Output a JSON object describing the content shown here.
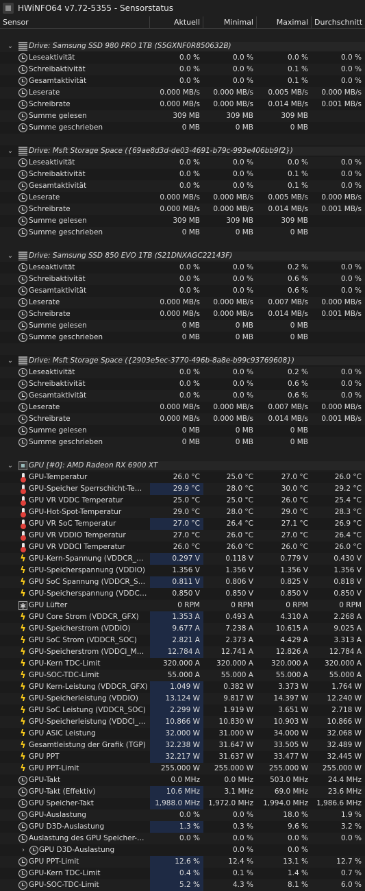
{
  "window": {
    "title": "HWiNFO64 v7.72-5355 - Sensorstatus"
  },
  "header": {
    "sensor": "Sensor",
    "current": "Aktuell",
    "min": "Minimal",
    "max": "Maximal",
    "avg": "Durchschnitt"
  },
  "rows": [
    {
      "kind": "blank"
    },
    {
      "kind": "group",
      "icon": "drive-icon",
      "label": "Drive: Samsung SSD 980 PRO 1TB (S5GXNF0R850632B)"
    },
    {
      "kind": "item",
      "icon": "clock-icon",
      "label": "Leseaktivität",
      "cur": "0.0 %",
      "min": "0.0 %",
      "max": "0.0 %",
      "avg": "0.0 %"
    },
    {
      "kind": "item",
      "icon": "clock-icon",
      "label": "Schreibaktivität",
      "cur": "0.0 %",
      "min": "0.0 %",
      "max": "0.1 %",
      "avg": "0.0 %"
    },
    {
      "kind": "item",
      "icon": "clock-icon",
      "label": "Gesamtaktivität",
      "cur": "0.0 %",
      "min": "0.0 %",
      "max": "0.1 %",
      "avg": "0.0 %"
    },
    {
      "kind": "item",
      "icon": "clock-icon",
      "label": "Leserate",
      "cur": "0.000 MB/s",
      "min": "0.000 MB/s",
      "max": "0.005 MB/s",
      "avg": "0.000 MB/s"
    },
    {
      "kind": "item",
      "icon": "clock-icon",
      "label": "Schreibrate",
      "cur": "0.000 MB/s",
      "min": "0.000 MB/s",
      "max": "0.014 MB/s",
      "avg": "0.001 MB/s"
    },
    {
      "kind": "item",
      "icon": "clock-icon",
      "label": "Summe gelesen",
      "cur": "309 MB",
      "min": "309 MB",
      "max": "309 MB",
      "avg": ""
    },
    {
      "kind": "item",
      "icon": "clock-icon",
      "label": "Summe geschrieben",
      "cur": "0 MB",
      "min": "0 MB",
      "max": "0 MB",
      "avg": ""
    },
    {
      "kind": "blank"
    },
    {
      "kind": "group",
      "icon": "drive-icon",
      "label": "Drive: Msft Storage Space ({69ae8d3d-de03-4691-b79c-993e406bb9f2})"
    },
    {
      "kind": "item",
      "icon": "clock-icon",
      "label": "Leseaktivität",
      "cur": "0.0 %",
      "min": "0.0 %",
      "max": "0.0 %",
      "avg": "0.0 %"
    },
    {
      "kind": "item",
      "icon": "clock-icon",
      "label": "Schreibaktivität",
      "cur": "0.0 %",
      "min": "0.0 %",
      "max": "0.1 %",
      "avg": "0.0 %"
    },
    {
      "kind": "item",
      "icon": "clock-icon",
      "label": "Gesamtaktivität",
      "cur": "0.0 %",
      "min": "0.0 %",
      "max": "0.1 %",
      "avg": "0.0 %"
    },
    {
      "kind": "item",
      "icon": "clock-icon",
      "label": "Leserate",
      "cur": "0.000 MB/s",
      "min": "0.000 MB/s",
      "max": "0.005 MB/s",
      "avg": "0.000 MB/s"
    },
    {
      "kind": "item",
      "icon": "clock-icon",
      "label": "Schreibrate",
      "cur": "0.000 MB/s",
      "min": "0.000 MB/s",
      "max": "0.014 MB/s",
      "avg": "0.001 MB/s"
    },
    {
      "kind": "item",
      "icon": "clock-icon",
      "label": "Summe gelesen",
      "cur": "309 MB",
      "min": "309 MB",
      "max": "309 MB",
      "avg": ""
    },
    {
      "kind": "item",
      "icon": "clock-icon",
      "label": "Summe geschrieben",
      "cur": "0 MB",
      "min": "0 MB",
      "max": "0 MB",
      "avg": ""
    },
    {
      "kind": "blank"
    },
    {
      "kind": "group",
      "icon": "drive-icon",
      "label": "Drive: Samsung SSD 850 EVO 1TB (S21DNXAGC22143F)"
    },
    {
      "kind": "item",
      "icon": "clock-icon",
      "label": "Leseaktivität",
      "cur": "0.0 %",
      "min": "0.0 %",
      "max": "0.2 %",
      "avg": "0.0 %"
    },
    {
      "kind": "item",
      "icon": "clock-icon",
      "label": "Schreibaktivität",
      "cur": "0.0 %",
      "min": "0.0 %",
      "max": "0.6 %",
      "avg": "0.0 %"
    },
    {
      "kind": "item",
      "icon": "clock-icon",
      "label": "Gesamtaktivität",
      "cur": "0.0 %",
      "min": "0.0 %",
      "max": "0.6 %",
      "avg": "0.0 %"
    },
    {
      "kind": "item",
      "icon": "clock-icon",
      "label": "Leserate",
      "cur": "0.000 MB/s",
      "min": "0.000 MB/s",
      "max": "0.007 MB/s",
      "avg": "0.000 MB/s"
    },
    {
      "kind": "item",
      "icon": "clock-icon",
      "label": "Schreibrate",
      "cur": "0.000 MB/s",
      "min": "0.000 MB/s",
      "max": "0.014 MB/s",
      "avg": "0.001 MB/s"
    },
    {
      "kind": "item",
      "icon": "clock-icon",
      "label": "Summe gelesen",
      "cur": "0 MB",
      "min": "0 MB",
      "max": "0 MB",
      "avg": ""
    },
    {
      "kind": "item",
      "icon": "clock-icon",
      "label": "Summe geschrieben",
      "cur": "0 MB",
      "min": "0 MB",
      "max": "0 MB",
      "avg": ""
    },
    {
      "kind": "blank"
    },
    {
      "kind": "group",
      "icon": "drive-icon",
      "label": "Drive: Msft Storage Space ({2903e5ec-3770-496b-8a8e-b99c93769608})"
    },
    {
      "kind": "item",
      "icon": "clock-icon",
      "label": "Leseaktivität",
      "cur": "0.0 %",
      "min": "0.0 %",
      "max": "0.2 %",
      "avg": "0.0 %"
    },
    {
      "kind": "item",
      "icon": "clock-icon",
      "label": "Schreibaktivität",
      "cur": "0.0 %",
      "min": "0.0 %",
      "max": "0.6 %",
      "avg": "0.0 %"
    },
    {
      "kind": "item",
      "icon": "clock-icon",
      "label": "Gesamtaktivität",
      "cur": "0.0 %",
      "min": "0.0 %",
      "max": "0.6 %",
      "avg": "0.0 %"
    },
    {
      "kind": "item",
      "icon": "clock-icon",
      "label": "Leserate",
      "cur": "0.000 MB/s",
      "min": "0.000 MB/s",
      "max": "0.007 MB/s",
      "avg": "0.000 MB/s"
    },
    {
      "kind": "item",
      "icon": "clock-icon",
      "label": "Schreibrate",
      "cur": "0.000 MB/s",
      "min": "0.000 MB/s",
      "max": "0.014 MB/s",
      "avg": "0.001 MB/s"
    },
    {
      "kind": "item",
      "icon": "clock-icon",
      "label": "Summe gelesen",
      "cur": "0 MB",
      "min": "0 MB",
      "max": "0 MB",
      "avg": ""
    },
    {
      "kind": "item",
      "icon": "clock-icon",
      "label": "Summe geschrieben",
      "cur": "0 MB",
      "min": "0 MB",
      "max": "0 MB",
      "avg": ""
    },
    {
      "kind": "blank"
    },
    {
      "kind": "group",
      "icon": "chip-icon",
      "label": "GPU [#0]: AMD Radeon RX 6900 XT"
    },
    {
      "kind": "item",
      "icon": "thermometer-icon",
      "label": "GPU-Temperatur",
      "cur": "26.0 °C",
      "min": "25.0 °C",
      "max": "27.0 °C",
      "avg": "26.0 °C"
    },
    {
      "kind": "item",
      "icon": "thermometer-icon",
      "label": "GPU-Speicher Sperrschicht-Temperatur",
      "cur": "29.9 °C",
      "min": "28.0 °C",
      "max": "30.0 °C",
      "avg": "29.2 °C",
      "hl": true
    },
    {
      "kind": "item",
      "icon": "thermometer-icon",
      "label": "GPU VR VDDC Temperatur",
      "cur": "25.0 °C",
      "min": "25.0 °C",
      "max": "26.0 °C",
      "avg": "25.4 °C"
    },
    {
      "kind": "item",
      "icon": "thermometer-icon",
      "label": "GPU-Hot-Spot-Temperatur",
      "cur": "29.0 °C",
      "min": "28.0 °C",
      "max": "29.0 °C",
      "avg": "28.3 °C"
    },
    {
      "kind": "item",
      "icon": "thermometer-icon",
      "label": "GPU VR SoC Temperatur",
      "cur": "27.0 °C",
      "min": "26.4 °C",
      "max": "27.1 °C",
      "avg": "26.9 °C",
      "hl": true
    },
    {
      "kind": "item",
      "icon": "thermometer-icon",
      "label": "GPU VR VDDIO Temperatur",
      "cur": "27.0 °C",
      "min": "26.0 °C",
      "max": "27.0 °C",
      "avg": "26.4 °C"
    },
    {
      "kind": "item",
      "icon": "thermometer-icon",
      "label": "GPU VR VDDCI Temperatur",
      "cur": "26.0 °C",
      "min": "26.0 °C",
      "max": "26.0 °C",
      "avg": "26.0 °C"
    },
    {
      "kind": "item",
      "icon": "bolt-icon",
      "label": "GPU-Kern-Spannung (VDDCR_GFX)",
      "cur": "0.297 V",
      "min": "0.118 V",
      "max": "0.779 V",
      "avg": "0.430 V",
      "hl": true
    },
    {
      "kind": "item",
      "icon": "bolt-icon",
      "label": "GPU-Speicherspannung (VDDIO)",
      "cur": "1.356 V",
      "min": "1.356 V",
      "max": "1.356 V",
      "avg": "1.356 V"
    },
    {
      "kind": "item",
      "icon": "bolt-icon",
      "label": "GPU SoC Spannung (VDDCR_SOC)",
      "cur": "0.811 V",
      "min": "0.806 V",
      "max": "0.825 V",
      "avg": "0.818 V",
      "hl": true
    },
    {
      "kind": "item",
      "icon": "bolt-icon",
      "label": "GPU-Speicherspannung (VDDCI_MEM)",
      "cur": "0.850 V",
      "min": "0.850 V",
      "max": "0.850 V",
      "avg": "0.850 V"
    },
    {
      "kind": "item",
      "icon": "fan-icon",
      "label": "GPU Lüfter",
      "cur": "0 RPM",
      "min": "0 RPM",
      "max": "0 RPM",
      "avg": "0 RPM"
    },
    {
      "kind": "item",
      "icon": "bolt-icon",
      "label": "GPU Core Strom (VDDCR_GFX)",
      "cur": "1.353 A",
      "min": "0.493 A",
      "max": "4.310 A",
      "avg": "2.268 A",
      "hl": true
    },
    {
      "kind": "item",
      "icon": "bolt-icon",
      "label": "GPU-Speicherstrom (VDDIO)",
      "cur": "9.677 A",
      "min": "7.238 A",
      "max": "10.615 A",
      "avg": "9.025 A",
      "hl": true
    },
    {
      "kind": "item",
      "icon": "bolt-icon",
      "label": "GPU SoC Strom (VDDCR_SOC)",
      "cur": "2.821 A",
      "min": "2.373 A",
      "max": "4.429 A",
      "avg": "3.313 A",
      "hl": true
    },
    {
      "kind": "item",
      "icon": "bolt-icon",
      "label": "GPU-Speicherstrom (VDDCI_MEM)",
      "cur": "12.784 A",
      "min": "12.741 A",
      "max": "12.826 A",
      "avg": "12.784 A",
      "hl": true
    },
    {
      "kind": "item",
      "icon": "bolt-icon",
      "label": "GPU-Kern TDC-Limit",
      "cur": "320.000 A",
      "min": "320.000 A",
      "max": "320.000 A",
      "avg": "320.000 A"
    },
    {
      "kind": "item",
      "icon": "bolt-icon",
      "label": "GPU-SOC-TDC-Limit",
      "cur": "55.000 A",
      "min": "55.000 A",
      "max": "55.000 A",
      "avg": "55.000 A"
    },
    {
      "kind": "item",
      "icon": "bolt-icon",
      "label": "GPU Kern-Leistung (VDDCR_GFX)",
      "cur": "1.049 W",
      "min": "0.382 W",
      "max": "3.373 W",
      "avg": "1.764 W",
      "hl": true
    },
    {
      "kind": "item",
      "icon": "bolt-icon",
      "label": "GPU-Speicherleistung (VDDIO)",
      "cur": "13.124 W",
      "min": "9.817 W",
      "max": "14.397 W",
      "avg": "12.240 W",
      "hl": true
    },
    {
      "kind": "item",
      "icon": "bolt-icon",
      "label": "GPU SoC Leistung (VDDCR_SOC)",
      "cur": "2.299 W",
      "min": "1.919 W",
      "max": "3.651 W",
      "avg": "2.718 W",
      "hl": true
    },
    {
      "kind": "item",
      "icon": "bolt-icon",
      "label": "GPU-Speicherleistung (VDDCI_MEM)",
      "cur": "10.866 W",
      "min": "10.830 W",
      "max": "10.903 W",
      "avg": "10.866 W",
      "hl": true
    },
    {
      "kind": "item",
      "icon": "bolt-icon",
      "label": "GPU ASIC Leistung",
      "cur": "32.000 W",
      "min": "31.000 W",
      "max": "34.000 W",
      "avg": "32.068 W",
      "hl": true
    },
    {
      "kind": "item",
      "icon": "bolt-icon",
      "label": "Gesamtleistung der Grafik (TGP)",
      "cur": "32.238 W",
      "min": "31.647 W",
      "max": "33.505 W",
      "avg": "32.489 W",
      "hl": true
    },
    {
      "kind": "item",
      "icon": "bolt-icon",
      "label": "GPU PPT",
      "cur": "32.217 W",
      "min": "31.637 W",
      "max": "33.477 W",
      "avg": "32.445 W",
      "hl": true
    },
    {
      "kind": "item",
      "icon": "bolt-icon",
      "label": "GPU PPT-Limit",
      "cur": "255.000 W",
      "min": "255.000 W",
      "max": "255.000 W",
      "avg": "255.000 W"
    },
    {
      "kind": "item",
      "icon": "clock-icon",
      "label": "GPU-Takt",
      "cur": "0.0 MHz",
      "min": "0.0 MHz",
      "max": "503.0 MHz",
      "avg": "24.4 MHz"
    },
    {
      "kind": "item",
      "icon": "clock-icon",
      "label": "GPU-Takt (Effektiv)",
      "cur": "10.6 MHz",
      "min": "3.1 MHz",
      "max": "69.0 MHz",
      "avg": "23.6 MHz",
      "hl": true
    },
    {
      "kind": "item",
      "icon": "clock-icon",
      "label": "GPU Speicher-Takt",
      "cur": "1,988.0 MHz",
      "min": "1,972.0 MHz",
      "max": "1,994.0 MHz",
      "avg": "1,986.6 MHz",
      "hl": true
    },
    {
      "kind": "item",
      "icon": "clock-icon",
      "label": "GPU-Auslastung",
      "cur": "0.0 %",
      "min": "0.0 %",
      "max": "18.0 %",
      "avg": "1.9 %"
    },
    {
      "kind": "item",
      "icon": "clock-icon",
      "label": "GPU D3D-Auslastung",
      "cur": "1.3 %",
      "min": "0.3 %",
      "max": "9.6 %",
      "avg": "3.2 %",
      "hl": true
    },
    {
      "kind": "item",
      "icon": "clock-icon",
      "label": "Auslastung des GPU Speicher-Controllers",
      "cur": "0.0 %",
      "min": "0.0 %",
      "max": "0.0 %",
      "avg": "0.0 %"
    },
    {
      "kind": "subgroup",
      "icon": "clock-icon",
      "label": "GPU D3D-Auslastung",
      "cur": "",
      "min": "0.0 %",
      "max": "0.0 %",
      "avg": ""
    },
    {
      "kind": "item",
      "icon": "clock-icon",
      "label": "GPU PPT-Limit",
      "cur": "12.6 %",
      "min": "12.4 %",
      "max": "13.1 %",
      "avg": "12.7 %",
      "hl": true
    },
    {
      "kind": "item",
      "icon": "clock-icon",
      "label": "GPU-Kern TDC-Limit",
      "cur": "0.4 %",
      "min": "0.1 %",
      "max": "1.4 %",
      "avg": "0.7 %",
      "hl": true
    },
    {
      "kind": "item",
      "icon": "clock-icon",
      "label": "GPU-SOC-TDC-Limit",
      "cur": "5.2 %",
      "min": "4.3 %",
      "max": "8.1 %",
      "avg": "6.0 %",
      "hl": true
    }
  ]
}
